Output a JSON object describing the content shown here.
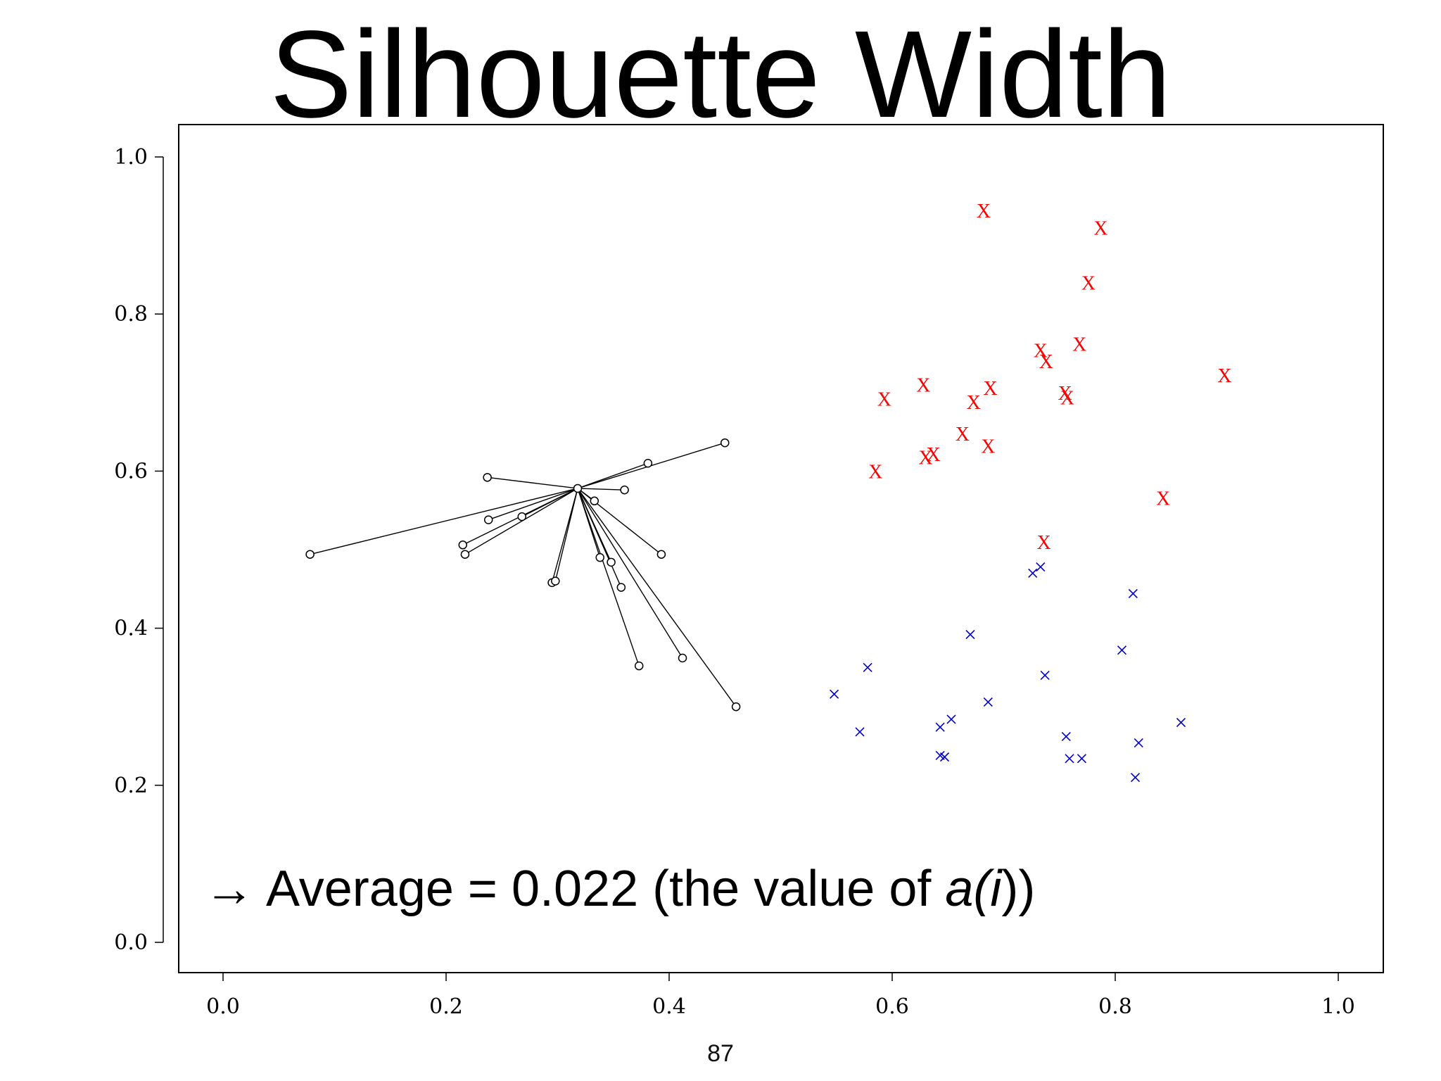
{
  "title": "Silhouette Width",
  "page_number": "87",
  "annotation": {
    "arrow": "→",
    "prefix": "Average = 0.022 (the value of ",
    "a": "a(",
    "i": "i",
    "suffix": "))"
  },
  "colors": {
    "cluster1": "#000000",
    "cluster2": "#ff0000",
    "cluster3": "#0000cc"
  },
  "chart_data": {
    "type": "scatter",
    "title": "",
    "xlabel": "",
    "ylabel": "",
    "xlim": [
      -0.04,
      1.04
    ],
    "ylim": [
      -0.04,
      1.04
    ],
    "x_ticks": [
      "0.0",
      "0.2",
      "0.4",
      "0.6",
      "0.8",
      "1.0"
    ],
    "y_ticks": [
      "0.0",
      "0.2",
      "0.4",
      "0.6",
      "0.8",
      "1.0"
    ],
    "grid": false,
    "focal_point": {
      "x": 0.318,
      "y": 0.578
    },
    "series": [
      {
        "marker": "circle",
        "color": "#000000",
        "points": [
          [
            0.078,
            0.494
          ],
          [
            0.215,
            0.506
          ],
          [
            0.217,
            0.494
          ],
          [
            0.237,
            0.592
          ],
          [
            0.238,
            0.538
          ],
          [
            0.268,
            0.542
          ],
          [
            0.295,
            0.458
          ],
          [
            0.298,
            0.46
          ],
          [
            0.318,
            0.578
          ],
          [
            0.333,
            0.562
          ],
          [
            0.338,
            0.49
          ],
          [
            0.348,
            0.484
          ],
          [
            0.357,
            0.452
          ],
          [
            0.36,
            0.576
          ],
          [
            0.373,
            0.352
          ],
          [
            0.381,
            0.61
          ],
          [
            0.393,
            0.494
          ],
          [
            0.412,
            0.362
          ],
          [
            0.45,
            0.636
          ],
          [
            0.46,
            0.3
          ]
        ]
      },
      {
        "marker": "X",
        "color": "#ff0000",
        "points": [
          [
            0.682,
            0.932
          ],
          [
            0.787,
            0.91
          ],
          [
            0.776,
            0.84
          ],
          [
            0.768,
            0.762
          ],
          [
            0.733,
            0.754
          ],
          [
            0.738,
            0.74
          ],
          [
            0.898,
            0.722
          ],
          [
            0.628,
            0.71
          ],
          [
            0.688,
            0.706
          ],
          [
            0.755,
            0.7
          ],
          [
            0.757,
            0.694
          ],
          [
            0.593,
            0.692
          ],
          [
            0.673,
            0.688
          ],
          [
            0.663,
            0.648
          ],
          [
            0.686,
            0.632
          ],
          [
            0.637,
            0.622
          ],
          [
            0.63,
            0.618
          ],
          [
            0.585,
            0.6
          ],
          [
            0.843,
            0.566
          ],
          [
            0.736,
            0.51
          ]
        ]
      },
      {
        "marker": "x",
        "color": "#0000cc",
        "points": [
          [
            0.733,
            0.478
          ],
          [
            0.726,
            0.47
          ],
          [
            0.816,
            0.444
          ],
          [
            0.67,
            0.392
          ],
          [
            0.806,
            0.372
          ],
          [
            0.578,
            0.35
          ],
          [
            0.737,
            0.34
          ],
          [
            0.548,
            0.316
          ],
          [
            0.686,
            0.306
          ],
          [
            0.653,
            0.284
          ],
          [
            0.859,
            0.28
          ],
          [
            0.643,
            0.274
          ],
          [
            0.571,
            0.268
          ],
          [
            0.756,
            0.262
          ],
          [
            0.821,
            0.254
          ],
          [
            0.643,
            0.238
          ],
          [
            0.647,
            0.236
          ],
          [
            0.759,
            0.234
          ],
          [
            0.77,
            0.234
          ],
          [
            0.818,
            0.21
          ]
        ]
      }
    ]
  }
}
